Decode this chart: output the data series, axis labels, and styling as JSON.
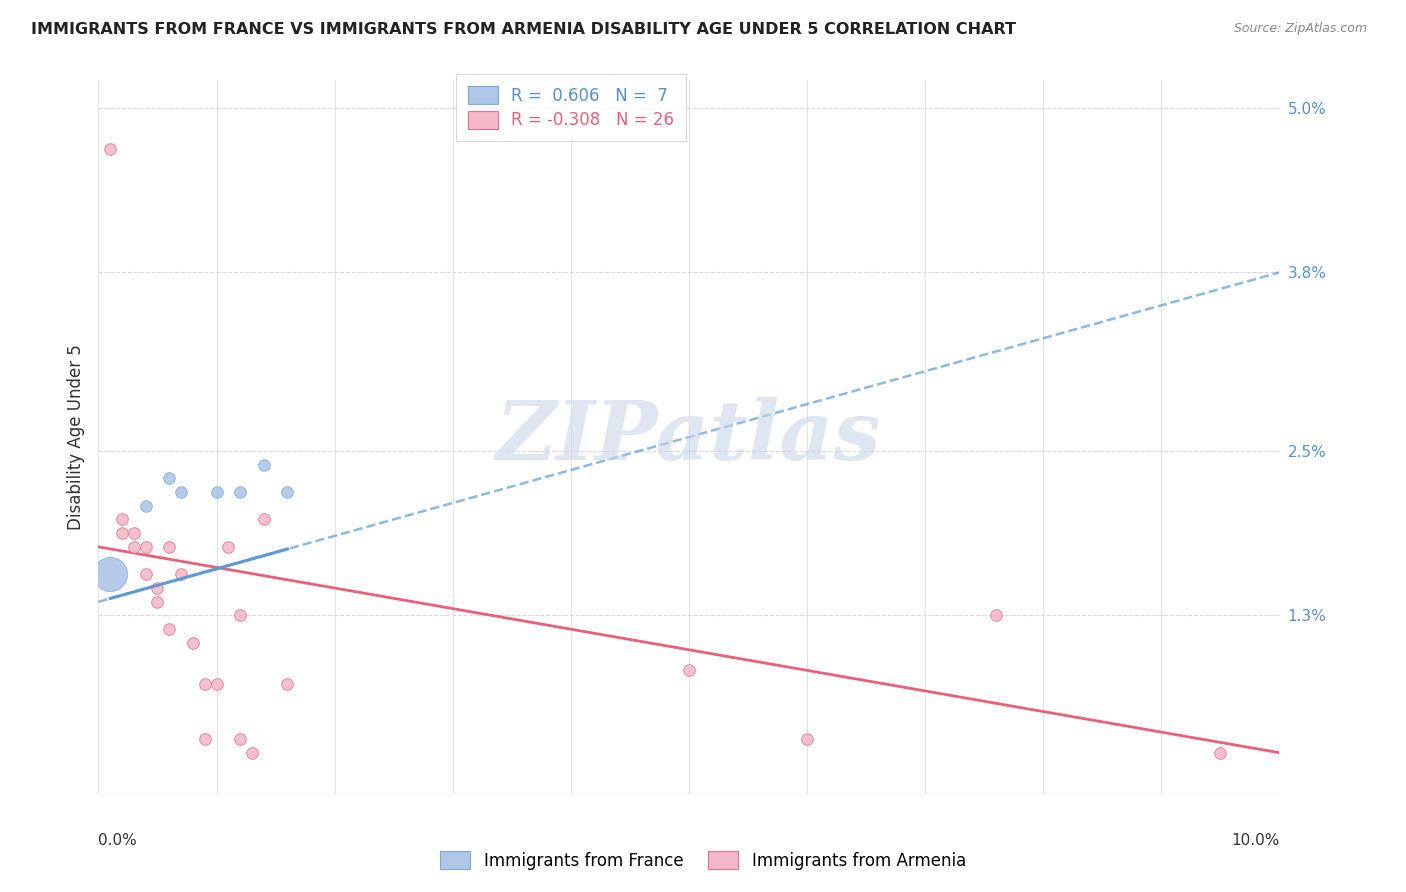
{
  "title": "IMMIGRANTS FROM FRANCE VS IMMIGRANTS FROM ARMENIA DISABILITY AGE UNDER 5 CORRELATION CHART",
  "source": "Source: ZipAtlas.com",
  "ylabel": "Disability Age Under 5",
  "france_color": "#aec6e8",
  "armenia_color": "#f4b8c8",
  "france_line_color": "#5b9bd5",
  "armenia_line_color": "#e8607a",
  "france_dots": [
    [
      0.004,
      0.021
    ],
    [
      0.006,
      0.023
    ],
    [
      0.007,
      0.022
    ],
    [
      0.01,
      0.022
    ],
    [
      0.012,
      0.022
    ],
    [
      0.014,
      0.024
    ],
    [
      0.016,
      0.022
    ]
  ],
  "france_large_dot": [
    0.001,
    0.016
  ],
  "france_large_dot_size": 600,
  "armenia_dots": [
    [
      0.001,
      0.047
    ],
    [
      0.002,
      0.02
    ],
    [
      0.002,
      0.019
    ],
    [
      0.003,
      0.019
    ],
    [
      0.003,
      0.018
    ],
    [
      0.004,
      0.018
    ],
    [
      0.004,
      0.016
    ],
    [
      0.005,
      0.015
    ],
    [
      0.005,
      0.014
    ],
    [
      0.006,
      0.018
    ],
    [
      0.006,
      0.012
    ],
    [
      0.007,
      0.016
    ],
    [
      0.008,
      0.011
    ],
    [
      0.009,
      0.008
    ],
    [
      0.009,
      0.004
    ],
    [
      0.01,
      0.008
    ],
    [
      0.011,
      0.018
    ],
    [
      0.012,
      0.013
    ],
    [
      0.012,
      0.004
    ],
    [
      0.013,
      0.003
    ],
    [
      0.014,
      0.02
    ],
    [
      0.016,
      0.008
    ],
    [
      0.05,
      0.009
    ],
    [
      0.06,
      0.004
    ],
    [
      0.076,
      0.013
    ],
    [
      0.095,
      0.003
    ]
  ],
  "france_trend": [
    0.0,
    0.014,
    0.1,
    0.038
  ],
  "armenia_trend": [
    0.0,
    0.018,
    0.1,
    0.003
  ],
  "france_trend_ext": [
    0.0,
    0.012,
    0.1,
    0.038
  ],
  "xlim": [
    0.0,
    0.1
  ],
  "ylim": [
    0.0,
    0.052
  ],
  "right_ytick_values": [
    0.0,
    0.013,
    0.025,
    0.038,
    0.05
  ],
  "right_ytick_labels": [
    "",
    "1.3%",
    "2.5%",
    "3.8%",
    "5.0%"
  ],
  "watermark_text": "ZIPatlas",
  "background_color": "#ffffff",
  "grid_color": "#d8d8d8"
}
